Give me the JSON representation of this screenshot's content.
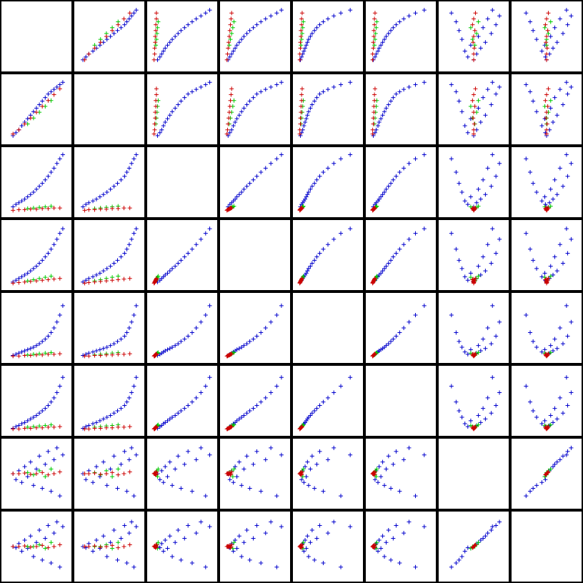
{
  "figure": {
    "type": "scatter-matrix",
    "variable_count": 8,
    "colors": {
      "group_a": "#0000cc",
      "group_b": "#00cc00",
      "group_c": "#cc0000",
      "frame": "#000000",
      "background": "#ffffff"
    },
    "marker": "plus"
  },
  "chart_data": {
    "type": "scatter",
    "layout": "scatter-matrix",
    "grid": false,
    "diagonal": "empty",
    "axis_tick_labels": "none",
    "series": [
      {
        "color": "#0000cc",
        "points": [
          [
            0.1,
            0.05,
            0.08,
            0.04,
            0.03,
            0.03,
            0.5,
            0.5
          ],
          [
            0.15,
            0.1,
            0.12,
            0.07,
            0.05,
            0.06,
            0.4,
            0.48
          ],
          [
            0.2,
            0.15,
            0.15,
            0.1,
            0.07,
            0.08,
            0.55,
            0.55
          ],
          [
            0.25,
            0.22,
            0.18,
            0.13,
            0.09,
            0.11,
            0.35,
            0.42
          ],
          [
            0.3,
            0.28,
            0.21,
            0.16,
            0.11,
            0.13,
            0.62,
            0.61
          ],
          [
            0.35,
            0.34,
            0.25,
            0.19,
            0.13,
            0.16,
            0.45,
            0.47
          ],
          [
            0.4,
            0.4,
            0.29,
            0.23,
            0.15,
            0.19,
            0.7,
            0.68
          ],
          [
            0.45,
            0.46,
            0.33,
            0.27,
            0.17,
            0.22,
            0.3,
            0.33
          ],
          [
            0.5,
            0.52,
            0.38,
            0.31,
            0.2,
            0.25,
            0.58,
            0.57
          ],
          [
            0.55,
            0.58,
            0.43,
            0.36,
            0.23,
            0.29,
            0.8,
            0.78
          ],
          [
            0.6,
            0.64,
            0.48,
            0.41,
            0.27,
            0.33,
            0.25,
            0.27
          ],
          [
            0.65,
            0.7,
            0.54,
            0.47,
            0.31,
            0.37,
            0.66,
            0.64
          ],
          [
            0.7,
            0.76,
            0.6,
            0.53,
            0.36,
            0.42,
            0.88,
            0.86
          ],
          [
            0.75,
            0.8,
            0.67,
            0.6,
            0.42,
            0.48,
            0.2,
            0.22
          ],
          [
            0.8,
            0.84,
            0.74,
            0.68,
            0.5,
            0.55,
            0.74,
            0.73
          ],
          [
            0.85,
            0.88,
            0.82,
            0.77,
            0.6,
            0.64,
            0.94,
            0.92
          ],
          [
            0.9,
            0.92,
            0.9,
            0.87,
            0.72,
            0.75,
            0.12,
            0.15
          ],
          [
            0.95,
            0.96,
            0.97,
            0.95,
            0.88,
            0.9,
            0.82,
            0.84
          ]
        ]
      },
      {
        "color": "#00cc00",
        "points": [
          [
            0.35,
            0.25,
            0.05,
            0.06,
            0.04,
            0.05,
            0.52,
            0.5
          ],
          [
            0.45,
            0.35,
            0.06,
            0.08,
            0.05,
            0.06,
            0.48,
            0.5
          ],
          [
            0.55,
            0.45,
            0.07,
            0.1,
            0.06,
            0.07,
            0.55,
            0.53
          ],
          [
            0.65,
            0.55,
            0.08,
            0.12,
            0.07,
            0.08,
            0.45,
            0.47
          ],
          [
            0.75,
            0.65,
            0.09,
            0.14,
            0.08,
            0.09,
            0.58,
            0.57
          ]
        ]
      },
      {
        "color": "#cc0000",
        "points": [
          [
            0.1,
            0.08,
            0.02,
            0.02,
            0.02,
            0.02,
            0.5,
            0.5
          ],
          [
            0.2,
            0.15,
            0.03,
            0.03,
            0.02,
            0.02,
            0.5,
            0.5
          ],
          [
            0.3,
            0.25,
            0.03,
            0.04,
            0.03,
            0.03,
            0.51,
            0.51
          ],
          [
            0.4,
            0.35,
            0.04,
            0.05,
            0.03,
            0.03,
            0.49,
            0.49
          ],
          [
            0.5,
            0.45,
            0.04,
            0.06,
            0.04,
            0.04,
            0.5,
            0.5
          ],
          [
            0.6,
            0.55,
            0.05,
            0.07,
            0.04,
            0.04,
            0.52,
            0.52
          ],
          [
            0.7,
            0.65,
            0.05,
            0.08,
            0.05,
            0.05,
            0.48,
            0.48
          ],
          [
            0.8,
            0.75,
            0.06,
            0.09,
            0.05,
            0.05,
            0.5,
            0.5
          ],
          [
            0.9,
            0.85,
            0.06,
            0.1,
            0.06,
            0.06,
            0.53,
            0.53
          ]
        ]
      }
    ]
  }
}
